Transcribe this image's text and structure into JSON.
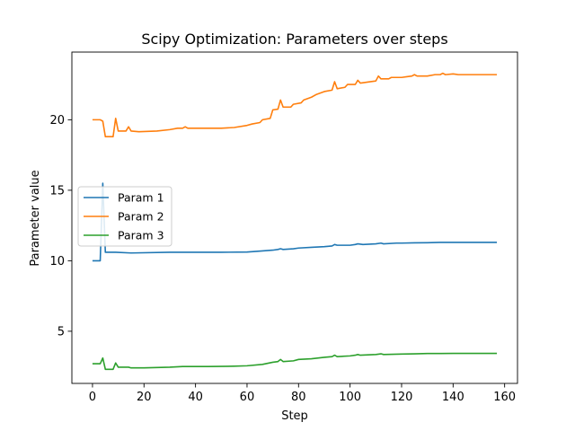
{
  "chart_data": {
    "type": "line",
    "title": "Scipy Optimization: Parameters over steps",
    "xlabel": "Step",
    "ylabel": "Parameter value",
    "xlim": [
      -8,
      165
    ],
    "ylim": [
      1.3,
      24.8
    ],
    "xticks": [
      0,
      20,
      40,
      60,
      80,
      100,
      120,
      140,
      160
    ],
    "yticks": [
      5,
      10,
      15,
      20
    ],
    "grid": false,
    "legend_position": "center-left",
    "series": [
      {
        "name": "Param 1",
        "color": "#1f77b4",
        "points": [
          [
            0,
            10.0
          ],
          [
            3,
            10.0
          ],
          [
            4,
            15.5
          ],
          [
            5,
            10.6
          ],
          [
            9,
            10.6
          ],
          [
            15,
            10.55
          ],
          [
            30,
            10.6
          ],
          [
            50,
            10.6
          ],
          [
            60,
            10.62
          ],
          [
            66,
            10.7
          ],
          [
            70,
            10.75
          ],
          [
            72,
            10.8
          ],
          [
            73,
            10.85
          ],
          [
            74,
            10.8
          ],
          [
            78,
            10.85
          ],
          [
            80,
            10.9
          ],
          [
            85,
            10.95
          ],
          [
            90,
            11.0
          ],
          [
            93,
            11.05
          ],
          [
            94,
            11.15
          ],
          [
            95,
            11.1
          ],
          [
            100,
            11.1
          ],
          [
            102,
            11.15
          ],
          [
            103,
            11.2
          ],
          [
            105,
            11.15
          ],
          [
            110,
            11.2
          ],
          [
            112,
            11.25
          ],
          [
            113,
            11.2
          ],
          [
            118,
            11.25
          ],
          [
            120,
            11.25
          ],
          [
            125,
            11.27
          ],
          [
            130,
            11.28
          ],
          [
            135,
            11.3
          ],
          [
            140,
            11.3
          ],
          [
            145,
            11.3
          ],
          [
            150,
            11.3
          ],
          [
            157,
            11.3
          ]
        ]
      },
      {
        "name": "Param 2",
        "color": "#ff7f0e",
        "points": [
          [
            0,
            20.0
          ],
          [
            3,
            20.0
          ],
          [
            4,
            19.9
          ],
          [
            5,
            18.8
          ],
          [
            8,
            18.8
          ],
          [
            9,
            20.1
          ],
          [
            10,
            19.2
          ],
          [
            13,
            19.2
          ],
          [
            14,
            19.5
          ],
          [
            15,
            19.2
          ],
          [
            18,
            19.15
          ],
          [
            25,
            19.2
          ],
          [
            30,
            19.3
          ],
          [
            33,
            19.4
          ],
          [
            35,
            19.4
          ],
          [
            36,
            19.5
          ],
          [
            37,
            19.4
          ],
          [
            50,
            19.4
          ],
          [
            55,
            19.45
          ],
          [
            60,
            19.6
          ],
          [
            62,
            19.7
          ],
          [
            65,
            19.8
          ],
          [
            66,
            20.0
          ],
          [
            69,
            20.1
          ],
          [
            70,
            20.7
          ],
          [
            72,
            20.75
          ],
          [
            73,
            21.4
          ],
          [
            74,
            20.9
          ],
          [
            77,
            20.9
          ],
          [
            78,
            21.1
          ],
          [
            81,
            21.2
          ],
          [
            82,
            21.4
          ],
          [
            85,
            21.6
          ],
          [
            87,
            21.8
          ],
          [
            90,
            22.0
          ],
          [
            93,
            22.1
          ],
          [
            94,
            22.7
          ],
          [
            95,
            22.2
          ],
          [
            98,
            22.3
          ],
          [
            99,
            22.5
          ],
          [
            102,
            22.5
          ],
          [
            103,
            22.8
          ],
          [
            104,
            22.6
          ],
          [
            108,
            22.7
          ],
          [
            110,
            22.75
          ],
          [
            111,
            23.1
          ],
          [
            112,
            22.9
          ],
          [
            115,
            22.9
          ],
          [
            116,
            23.0
          ],
          [
            120,
            23.0
          ],
          [
            122,
            23.05
          ],
          [
            124,
            23.1
          ],
          [
            125,
            23.2
          ],
          [
            126,
            23.1
          ],
          [
            130,
            23.1
          ],
          [
            133,
            23.2
          ],
          [
            135,
            23.2
          ],
          [
            136,
            23.3
          ],
          [
            137,
            23.2
          ],
          [
            140,
            23.25
          ],
          [
            142,
            23.2
          ],
          [
            150,
            23.2
          ],
          [
            157,
            23.2
          ]
        ]
      },
      {
        "name": "Param 3",
        "color": "#2ca02c",
        "points": [
          [
            0,
            2.7
          ],
          [
            3,
            2.7
          ],
          [
            4,
            3.1
          ],
          [
            5,
            2.3
          ],
          [
            8,
            2.3
          ],
          [
            9,
            2.75
          ],
          [
            10,
            2.45
          ],
          [
            14,
            2.45
          ],
          [
            15,
            2.4
          ],
          [
            20,
            2.4
          ],
          [
            30,
            2.45
          ],
          [
            35,
            2.5
          ],
          [
            45,
            2.5
          ],
          [
            55,
            2.52
          ],
          [
            60,
            2.55
          ],
          [
            66,
            2.65
          ],
          [
            70,
            2.8
          ],
          [
            72,
            2.85
          ],
          [
            73,
            3.0
          ],
          [
            74,
            2.85
          ],
          [
            78,
            2.9
          ],
          [
            80,
            3.0
          ],
          [
            85,
            3.05
          ],
          [
            90,
            3.15
          ],
          [
            93,
            3.2
          ],
          [
            94,
            3.3
          ],
          [
            95,
            3.2
          ],
          [
            100,
            3.25
          ],
          [
            102,
            3.3
          ],
          [
            103,
            3.35
          ],
          [
            104,
            3.3
          ],
          [
            110,
            3.35
          ],
          [
            112,
            3.4
          ],
          [
            113,
            3.35
          ],
          [
            120,
            3.38
          ],
          [
            125,
            3.4
          ],
          [
            130,
            3.42
          ],
          [
            135,
            3.42
          ],
          [
            140,
            3.43
          ],
          [
            145,
            3.43
          ],
          [
            150,
            3.43
          ],
          [
            157,
            3.43
          ]
        ]
      }
    ]
  }
}
